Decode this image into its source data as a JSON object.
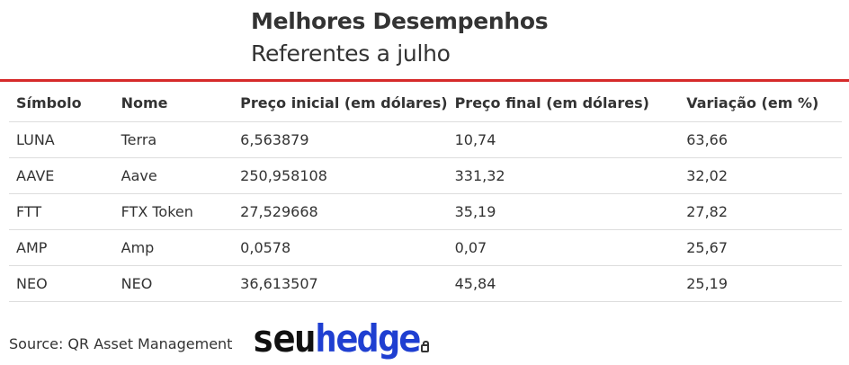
{
  "chart_data": {
    "type": "table",
    "title": "Melhores Desempenhos",
    "subtitle": "Referentes a julho",
    "columns": [
      "Símbolo",
      "Nome",
      "Preço inicial (em dólares)",
      "Preço final (em dólares)",
      "Variação (em %)"
    ],
    "rows": [
      [
        "LUNA",
        "Terra",
        "6,563879",
        "10,74",
        "63,66"
      ],
      [
        "AAVE",
        "Aave",
        "250,958108",
        "331,32",
        "32,02"
      ],
      [
        "FTT",
        "FTX Token",
        "27,529668",
        "35,19",
        "27,82"
      ],
      [
        "AMP",
        "Amp",
        "0,0578",
        "0,07",
        "25,67"
      ],
      [
        "NEO",
        "NEO",
        "36,613507",
        "45,84",
        "25,19"
      ]
    ]
  },
  "footer": {
    "source": "Source: QR Asset Management",
    "logo_part1": "seu",
    "logo_part2": "hedge"
  },
  "colors": {
    "accent_line": "#d62a2a",
    "logo_blue": "#1f3fd1",
    "text": "#333333"
  }
}
